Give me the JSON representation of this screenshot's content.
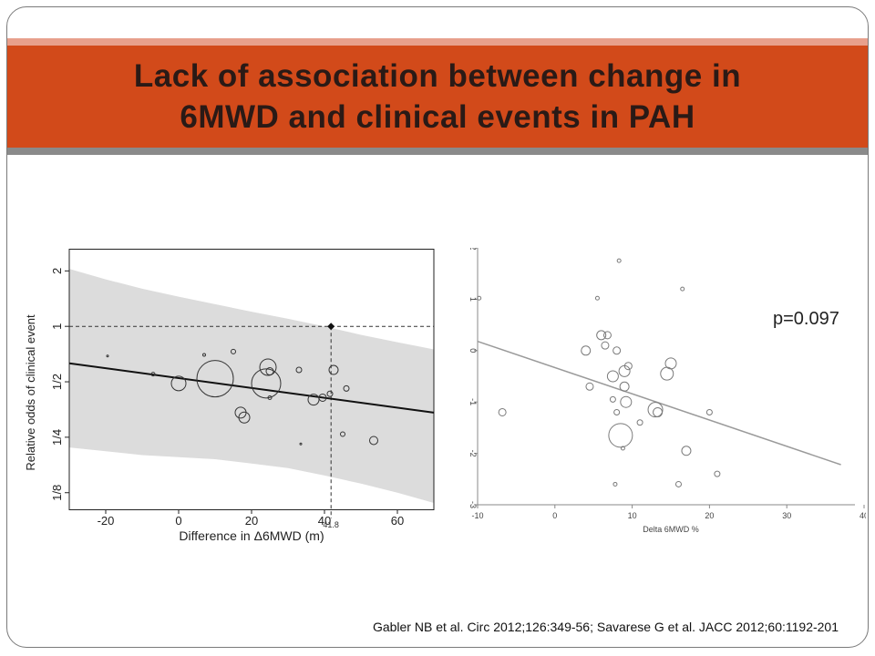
{
  "slide": {
    "title": "Lack of association between change in\n6MWD and clinical events in PAH",
    "citation": "Gabler NB et al. Circ 2012;126:349-56; Savarese G et al. JACC 2012;60:1192-201",
    "colors": {
      "title_bar": "#d24a1a",
      "title_band_top": "#e8a08c",
      "title_band_bottom": "#8a8a8a"
    }
  },
  "chart_data": [
    {
      "type": "scatter",
      "xlabel": "Difference in Δ6MWD (m)",
      "ylabel": "Relative odds of clinical event",
      "xlim": [
        -30,
        70
      ],
      "ylim_log2": [
        -3.3,
        1.4
      ],
      "x_ticks": [
        -20,
        0,
        20,
        40,
        60
      ],
      "y_ticks": [
        {
          "value": 2,
          "label": "2"
        },
        {
          "value": 1,
          "label": "1"
        },
        {
          "value": 0.5,
          "label": "1/2"
        },
        {
          "value": 0.25,
          "label": "1/4"
        },
        {
          "value": 0.125,
          "label": "1/8"
        }
      ],
      "reference_line_y": 1,
      "reference_point": {
        "x": 41.8,
        "y": 1,
        "label": "41.8"
      },
      "fit_line": [
        {
          "x": -30,
          "y": 0.63
        },
        {
          "x": 70,
          "y": 0.34
        }
      ],
      "confidence_band": {
        "x": [
          -30,
          -20,
          -10,
          0,
          10,
          20,
          30,
          40,
          50,
          60,
          70
        ],
        "upper": [
          2.05,
          1.8,
          1.6,
          1.45,
          1.32,
          1.2,
          1.1,
          1.0,
          0.9,
          0.82,
          0.75
        ],
        "lower": [
          0.22,
          0.21,
          0.2,
          0.195,
          0.19,
          0.18,
          0.17,
          0.155,
          0.14,
          0.125,
          0.11
        ]
      },
      "points": [
        {
          "x": -19.5,
          "y": 0.69,
          "r": 1
        },
        {
          "x": -7,
          "y": 0.55,
          "r": 2
        },
        {
          "x": 0,
          "y": 0.49,
          "r": 8
        },
        {
          "x": 7,
          "y": 0.7,
          "r": 1.5
        },
        {
          "x": 10,
          "y": 0.52,
          "r": 20
        },
        {
          "x": 15,
          "y": 0.73,
          "r": 2.5
        },
        {
          "x": 17,
          "y": 0.34,
          "r": 6
        },
        {
          "x": 18,
          "y": 0.32,
          "r": 6
        },
        {
          "x": 24,
          "y": 0.49,
          "r": 16
        },
        {
          "x": 24.5,
          "y": 0.6,
          "r": 9
        },
        {
          "x": 25,
          "y": 0.57,
          "r": 4
        },
        {
          "x": 25,
          "y": 0.41,
          "r": 2
        },
        {
          "x": 33,
          "y": 0.58,
          "r": 3
        },
        {
          "x": 33.5,
          "y": 0.23,
          "r": 1
        },
        {
          "x": 37,
          "y": 0.4,
          "r": 6
        },
        {
          "x": 39.5,
          "y": 0.41,
          "r": 4
        },
        {
          "x": 41.5,
          "y": 0.43,
          "r": 3
        },
        {
          "x": 42.5,
          "y": 0.58,
          "r": 5
        },
        {
          "x": 45,
          "y": 0.26,
          "r": 2.5
        },
        {
          "x": 46,
          "y": 0.46,
          "r": 3
        },
        {
          "x": 53.5,
          "y": 0.24,
          "r": 4.5
        }
      ]
    },
    {
      "type": "scatter",
      "xlabel": "Delta 6MWD %",
      "ylabel": "",
      "annotation": "p=0.097",
      "xlim": [
        -10,
        40
      ],
      "ylim": [
        -3,
        2
      ],
      "x_ticks": [
        -10,
        0,
        10,
        20,
        30,
        40
      ],
      "y_ticks": [
        2,
        1,
        0,
        -1,
        -2,
        -3
      ],
      "fit_line": [
        {
          "x": -10,
          "y": 0.18
        },
        {
          "x": 37,
          "y": -2.22
        }
      ],
      "points": [
        {
          "x": -9.8,
          "y": 1.02,
          "r": 2
        },
        {
          "x": -6.8,
          "y": -1.2,
          "r": 4
        },
        {
          "x": 4,
          "y": 0.0,
          "r": 5
        },
        {
          "x": 4.5,
          "y": -0.7,
          "r": 4
        },
        {
          "x": 5.5,
          "y": 1.02,
          "r": 2
        },
        {
          "x": 6,
          "y": 0.3,
          "r": 5
        },
        {
          "x": 6.5,
          "y": 0.1,
          "r": 4
        },
        {
          "x": 6.8,
          "y": 0.3,
          "r": 4
        },
        {
          "x": 7.5,
          "y": -0.95,
          "r": 3
        },
        {
          "x": 7.5,
          "y": -0.5,
          "r": 6
        },
        {
          "x": 8,
          "y": 0.0,
          "r": 4
        },
        {
          "x": 8,
          "y": -1.2,
          "r": 3
        },
        {
          "x": 7.8,
          "y": -2.6,
          "r": 2
        },
        {
          "x": 8.3,
          "y": 1.75,
          "r": 2
        },
        {
          "x": 8.5,
          "y": -1.65,
          "r": 13
        },
        {
          "x": 8.8,
          "y": -1.9,
          "r": 2
        },
        {
          "x": 9,
          "y": -0.4,
          "r": 6
        },
        {
          "x": 9,
          "y": -0.7,
          "r": 5
        },
        {
          "x": 9.2,
          "y": -1.0,
          "r": 6
        },
        {
          "x": 9.5,
          "y": -0.3,
          "r": 4
        },
        {
          "x": 11,
          "y": -1.4,
          "r": 3
        },
        {
          "x": 13,
          "y": -1.15,
          "r": 8
        },
        {
          "x": 13.3,
          "y": -1.2,
          "r": 5
        },
        {
          "x": 14.5,
          "y": -0.45,
          "r": 7
        },
        {
          "x": 15,
          "y": -0.25,
          "r": 6
        },
        {
          "x": 16,
          "y": -2.6,
          "r": 3
        },
        {
          "x": 16.5,
          "y": 1.2,
          "r": 2
        },
        {
          "x": 17,
          "y": -1.95,
          "r": 5
        },
        {
          "x": 20,
          "y": -1.2,
          "r": 3
        },
        {
          "x": 21,
          "y": -2.4,
          "r": 3
        }
      ]
    }
  ]
}
